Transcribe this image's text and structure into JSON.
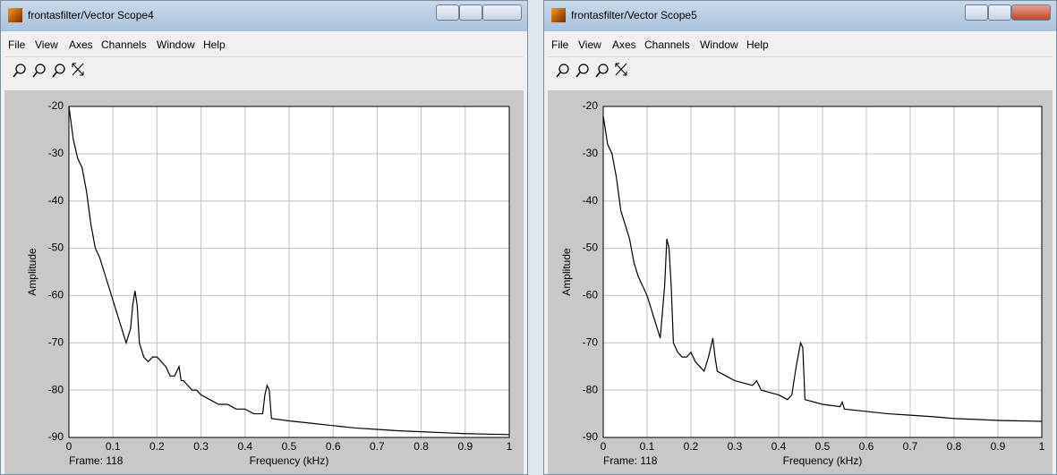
{
  "windows": [
    {
      "title": "frontasfilter/Vector Scope4",
      "menu": [
        "File",
        "View",
        "Axes",
        "Channels",
        "Window",
        "Help"
      ],
      "frame": "Frame: 118",
      "chart": {
        "type": "line",
        "xlabel": "Frequency (kHz)",
        "ylabel": "Amplitude",
        "xlim": [
          0,
          1
        ],
        "ylim": [
          -90,
          -20
        ],
        "xticks": [
          0,
          0.1,
          0.2,
          0.3,
          0.4,
          0.5,
          0.6,
          0.7,
          0.8,
          0.9,
          1
        ],
        "yticks": [
          -90,
          -80,
          -70,
          -60,
          -50,
          -40,
          -30,
          -20
        ],
        "grid": true,
        "color": "#000000",
        "x": [
          0,
          0.01,
          0.02,
          0.03,
          0.04,
          0.05,
          0.06,
          0.07,
          0.08,
          0.09,
          0.1,
          0.11,
          0.12,
          0.13,
          0.14,
          0.145,
          0.15,
          0.155,
          0.16,
          0.17,
          0.18,
          0.19,
          0.2,
          0.21,
          0.22,
          0.23,
          0.24,
          0.25,
          0.255,
          0.26,
          0.27,
          0.28,
          0.29,
          0.3,
          0.32,
          0.34,
          0.36,
          0.38,
          0.4,
          0.42,
          0.44,
          0.445,
          0.45,
          0.455,
          0.46,
          0.5,
          0.55,
          0.6,
          0.65,
          0.7,
          0.75,
          0.8,
          0.85,
          0.9,
          0.95,
          1
        ],
        "y": [
          -20,
          -27,
          -31,
          -33,
          -38,
          -45,
          -50,
          -52,
          -55,
          -58,
          -61,
          -64,
          -67,
          -70,
          -67,
          -62,
          -59,
          -62,
          -70,
          -73,
          -74,
          -73,
          -73,
          -74,
          -75,
          -77,
          -77,
          -75,
          -78,
          -78,
          -79,
          -80,
          -80,
          -81,
          -82,
          -83,
          -83,
          -84,
          -84,
          -85,
          -85,
          -81,
          -79,
          -80,
          -86,
          -86.5,
          -87,
          -87.5,
          -88,
          -88.3,
          -88.6,
          -88.8,
          -89,
          -89.2,
          -89.3,
          -89.4
        ]
      }
    },
    {
      "title": "frontasfilter/Vector Scope5",
      "menu": [
        "File",
        "View",
        "Axes",
        "Channels",
        "Window",
        "Help"
      ],
      "frame": "Frame: 118",
      "chart": {
        "type": "line",
        "xlabel": "Frequency (kHz)",
        "ylabel": "Amplitude",
        "xlim": [
          0,
          1
        ],
        "ylim": [
          -90,
          -20
        ],
        "xticks": [
          0,
          0.1,
          0.2,
          0.3,
          0.4,
          0.5,
          0.6,
          0.7,
          0.8,
          0.9,
          1
        ],
        "yticks": [
          -90,
          -80,
          -70,
          -60,
          -50,
          -40,
          -30,
          -20
        ],
        "grid": true,
        "color": "#000000",
        "x": [
          0,
          0.01,
          0.02,
          0.03,
          0.04,
          0.05,
          0.06,
          0.07,
          0.08,
          0.09,
          0.1,
          0.11,
          0.12,
          0.13,
          0.14,
          0.145,
          0.15,
          0.155,
          0.16,
          0.17,
          0.18,
          0.19,
          0.2,
          0.21,
          0.22,
          0.23,
          0.24,
          0.25,
          0.255,
          0.26,
          0.28,
          0.3,
          0.32,
          0.34,
          0.35,
          0.36,
          0.38,
          0.4,
          0.42,
          0.43,
          0.44,
          0.45,
          0.455,
          0.46,
          0.5,
          0.54,
          0.545,
          0.55,
          0.6,
          0.65,
          0.7,
          0.75,
          0.8,
          0.85,
          0.9,
          0.95,
          1
        ],
        "y": [
          -22,
          -28,
          -30,
          -35,
          -42,
          -45,
          -48,
          -53,
          -56,
          -58,
          -60,
          -63,
          -66,
          -69,
          -58,
          -48,
          -50,
          -58,
          -70,
          -72,
          -73,
          -73,
          -72,
          -74,
          -75,
          -76,
          -73,
          -69,
          -73,
          -76,
          -77,
          -78,
          -78.5,
          -79,
          -78,
          -80,
          -80.5,
          -81,
          -82,
          -81,
          -75,
          -70,
          -71,
          -82,
          -83,
          -83.5,
          -82.5,
          -84,
          -84.5,
          -85,
          -85.3,
          -85.6,
          -86,
          -86.2,
          -86.4,
          -86.5,
          -86.6
        ]
      }
    }
  ]
}
